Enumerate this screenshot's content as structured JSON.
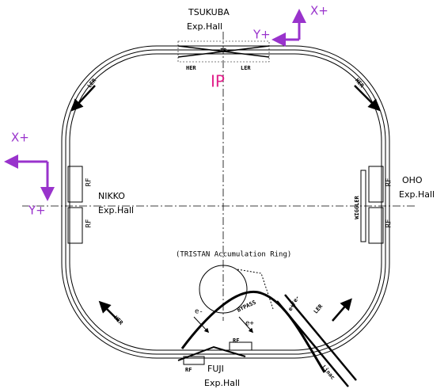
{
  "top": {
    "hall": "TSUKUBA",
    "hall_sub": "Exp.Hall",
    "ir": "IR",
    "her": "HER",
    "ler": "LER",
    "ip": "IP"
  },
  "axes_top": {
    "x": "X+",
    "y": "Y+"
  },
  "axes_left": {
    "x": "X+",
    "y": "Y+"
  },
  "ring": {
    "ler_top_left": "LER",
    "her_top_right": "HER",
    "her_bottom_left": "HER",
    "ler_bottom_right": "LER"
  },
  "nikko": {
    "hall": "NIKKO",
    "hall_sub": "Exp.Hall",
    "rf": [
      "RF",
      "RF"
    ]
  },
  "oho": {
    "hall": "OHO",
    "hall_sub": "Exp.Hall",
    "wiggler": "WIGGLER",
    "rf": [
      "RF",
      "RF"
    ]
  },
  "fuji": {
    "hall": "FUJI",
    "hall_sub": "Exp.Hall",
    "rf": [
      "RF",
      "RF"
    ]
  },
  "injection": {
    "tristan": "(TRISTAN Accumulation Ring)",
    "electron": "e-",
    "positron": "e+",
    "bypass": "BYPASS",
    "beam": "e+/e-",
    "linac": "Linac"
  }
}
